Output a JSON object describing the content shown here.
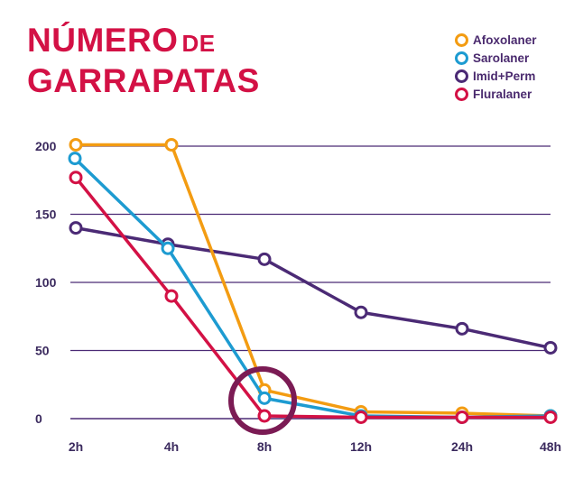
{
  "title": {
    "line1_main": "NÚMERO",
    "line1_small": "DE",
    "line2": "GARRAPATAS"
  },
  "colors": {
    "title": "#d31145",
    "grid": "#4b2a75",
    "Afoxolaner": "#f39c12",
    "Sarolaner": "#1d9bd1",
    "Imid+Perm": "#4b2a75",
    "Fluralaner": "#d31145",
    "highlight_circle": "#7b1b54"
  },
  "chart_data": {
    "type": "line",
    "title": "NÚMERO DE GARRAPATAS",
    "xlabel": "",
    "ylabel": "",
    "categories": [
      "2h",
      "4h",
      "8h",
      "12h",
      "24h",
      "48h"
    ],
    "yticks": [
      "200",
      "150",
      "100",
      "50",
      "0"
    ],
    "ylim": [
      0,
      200
    ],
    "grid": true,
    "legend_position": "top-right",
    "series": [
      {
        "name": "Afoxolaner",
        "values": [
          201,
          201,
          21,
          5,
          4,
          2
        ]
      },
      {
        "name": "Sarolaner",
        "values": [
          191,
          125,
          15,
          2,
          1,
          2
        ]
      },
      {
        "name": "Imid+Perm",
        "values": [
          140,
          128,
          117,
          78,
          66,
          52
        ]
      },
      {
        "name": "Fluralaner",
        "values": [
          177,
          90,
          2,
          1,
          1,
          1
        ]
      }
    ],
    "annotation": "highlight circle around 8h"
  }
}
